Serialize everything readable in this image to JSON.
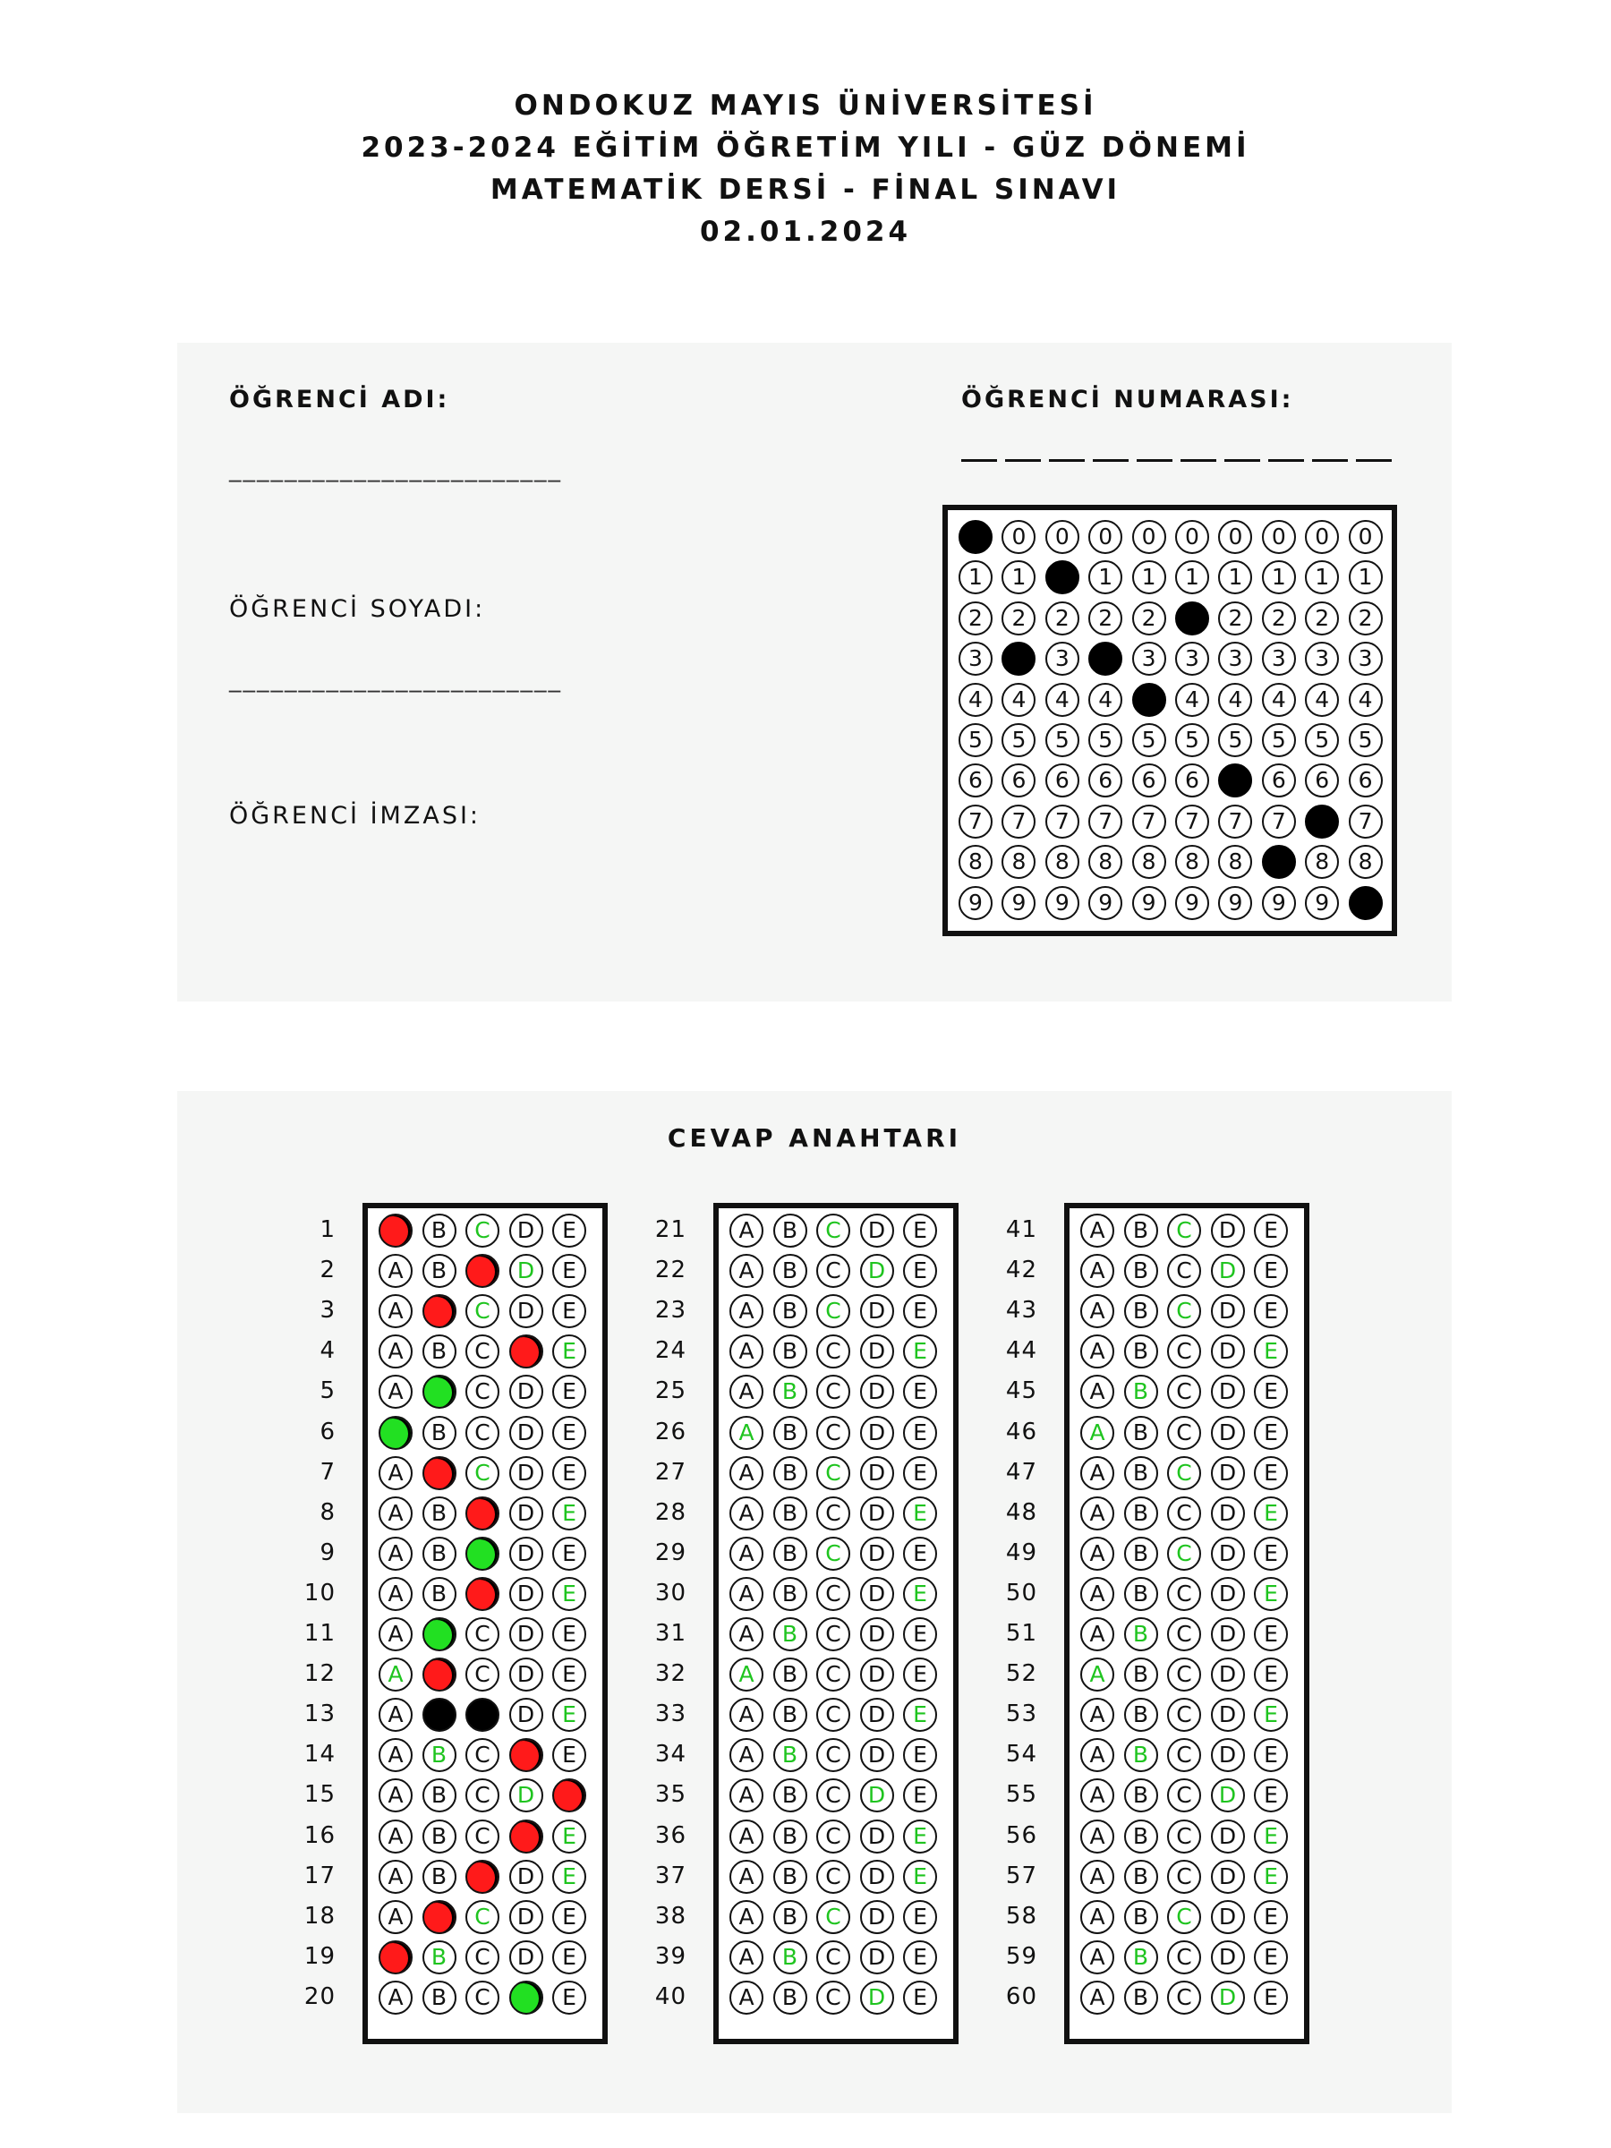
{
  "header": {
    "lines": [
      "ONDOKUZ MAYIS ÜNİVERSİTESİ",
      "2023-2024 EĞİTİM ÖĞRETİM YILI - GÜZ DÖNEMİ",
      "MATEMATİK DERSİ - FİNAL SINAVI",
      "02.01.2024"
    ]
  },
  "student": {
    "name_label": "ÖĞRENCİ ADI:",
    "name_line": "________________________",
    "surname_label": "ÖĞRENCİ SOYADI:",
    "surname_line": "________________________",
    "signature_label": "ÖĞRENCİ İMZASI:",
    "number_label": "ÖĞRENCİ NUMARASI:",
    "number_columns": 10,
    "digits": [
      "0",
      "1",
      "2",
      "3",
      "4",
      "5",
      "6",
      "7",
      "8",
      "9"
    ],
    "marked_digits": [
      0,
      3,
      1,
      3,
      4,
      2,
      6,
      8,
      7,
      9
    ]
  },
  "answer_key": {
    "title": "CEVAP ANAHTARI",
    "options": [
      "A",
      "B",
      "C",
      "D",
      "E"
    ],
    "colors": {
      "wrong": "#ff1a1a",
      "correct_marked": "#22e022",
      "correct_hint": "#1fc41f",
      "blank_double": "#000000"
    },
    "questions": [
      {
        "n": "1",
        "correct": "C",
        "marked": [
          "A"
        ],
        "status": "wrong"
      },
      {
        "n": "2",
        "correct": "D",
        "marked": [
          "C"
        ],
        "status": "wrong"
      },
      {
        "n": "3",
        "correct": "C",
        "marked": [
          "B"
        ],
        "status": "wrong"
      },
      {
        "n": "4",
        "correct": "E",
        "marked": [
          "D"
        ],
        "status": "wrong"
      },
      {
        "n": "5",
        "correct": "B",
        "marked": [
          "B"
        ],
        "status": "correct"
      },
      {
        "n": "6",
        "correct": "A",
        "marked": [
          "A"
        ],
        "status": "correct"
      },
      {
        "n": "7",
        "correct": "C",
        "marked": [
          "B"
        ],
        "status": "wrong"
      },
      {
        "n": "8",
        "correct": "E",
        "marked": [
          "C"
        ],
        "status": "wrong"
      },
      {
        "n": "9",
        "correct": "C",
        "marked": [
          "C"
        ],
        "status": "correct"
      },
      {
        "n": "10",
        "correct": "E",
        "marked": [
          "C"
        ],
        "status": "wrong"
      },
      {
        "n": "11",
        "correct": "B",
        "marked": [
          "B"
        ],
        "status": "correct"
      },
      {
        "n": "12",
        "correct": "A",
        "marked": [
          "B"
        ],
        "status": "wrong"
      },
      {
        "n": "13",
        "correct": "E",
        "marked": [
          "B",
          "C"
        ],
        "status": "invalid"
      },
      {
        "n": "14",
        "correct": "B",
        "marked": [
          "D"
        ],
        "status": "wrong"
      },
      {
        "n": "15",
        "correct": "D",
        "marked": [
          "E"
        ],
        "status": "wrong"
      },
      {
        "n": "16",
        "correct": "E",
        "marked": [
          "D"
        ],
        "status": "wrong"
      },
      {
        "n": "17",
        "correct": "E",
        "marked": [
          "C"
        ],
        "status": "wrong"
      },
      {
        "n": "18",
        "correct": "C",
        "marked": [
          "B"
        ],
        "status": "wrong"
      },
      {
        "n": "19",
        "correct": "B",
        "marked": [
          "A"
        ],
        "status": "wrong"
      },
      {
        "n": "20",
        "correct": "D",
        "marked": [
          "D"
        ],
        "status": "correct"
      },
      {
        "n": "21",
        "correct": "C",
        "marked": []
      },
      {
        "n": "22",
        "correct": "D",
        "marked": []
      },
      {
        "n": "23",
        "correct": "C",
        "marked": []
      },
      {
        "n": "24",
        "correct": "E",
        "marked": []
      },
      {
        "n": "25",
        "correct": "B",
        "marked": []
      },
      {
        "n": "26",
        "correct": "A",
        "marked": []
      },
      {
        "n": "27",
        "correct": "C",
        "marked": []
      },
      {
        "n": "28",
        "correct": "E",
        "marked": []
      },
      {
        "n": "29",
        "correct": "C",
        "marked": []
      },
      {
        "n": "30",
        "correct": "E",
        "marked": []
      },
      {
        "n": "31",
        "correct": "B",
        "marked": []
      },
      {
        "n": "32",
        "correct": "A",
        "marked": []
      },
      {
        "n": "33",
        "correct": "E",
        "marked": []
      },
      {
        "n": "34",
        "correct": "B",
        "marked": []
      },
      {
        "n": "35",
        "correct": "D",
        "marked": []
      },
      {
        "n": "36",
        "correct": "E",
        "marked": []
      },
      {
        "n": "37",
        "correct": "E",
        "marked": []
      },
      {
        "n": "38",
        "correct": "C",
        "marked": []
      },
      {
        "n": "39",
        "correct": "B",
        "marked": []
      },
      {
        "n": "40",
        "correct": "D",
        "marked": []
      },
      {
        "n": "41",
        "correct": "C",
        "marked": []
      },
      {
        "n": "42",
        "correct": "D",
        "marked": []
      },
      {
        "n": "43",
        "correct": "C",
        "marked": []
      },
      {
        "n": "44",
        "correct": "E",
        "marked": []
      },
      {
        "n": "45",
        "correct": "B",
        "marked": []
      },
      {
        "n": "46",
        "correct": "A",
        "marked": []
      },
      {
        "n": "47",
        "correct": "C",
        "marked": []
      },
      {
        "n": "48",
        "correct": "E",
        "marked": []
      },
      {
        "n": "49",
        "correct": "C",
        "marked": []
      },
      {
        "n": "50",
        "correct": "E",
        "marked": []
      },
      {
        "n": "51",
        "correct": "B",
        "marked": []
      },
      {
        "n": "52",
        "correct": "A",
        "marked": []
      },
      {
        "n": "53",
        "correct": "E",
        "marked": []
      },
      {
        "n": "54",
        "correct": "B",
        "marked": []
      },
      {
        "n": "55",
        "correct": "D",
        "marked": []
      },
      {
        "n": "56",
        "correct": "E",
        "marked": []
      },
      {
        "n": "57",
        "correct": "E",
        "marked": []
      },
      {
        "n": "58",
        "correct": "C",
        "marked": []
      },
      {
        "n": "59",
        "correct": "B",
        "marked": []
      },
      {
        "n": "60",
        "correct": "D",
        "marked": []
      }
    ]
  }
}
